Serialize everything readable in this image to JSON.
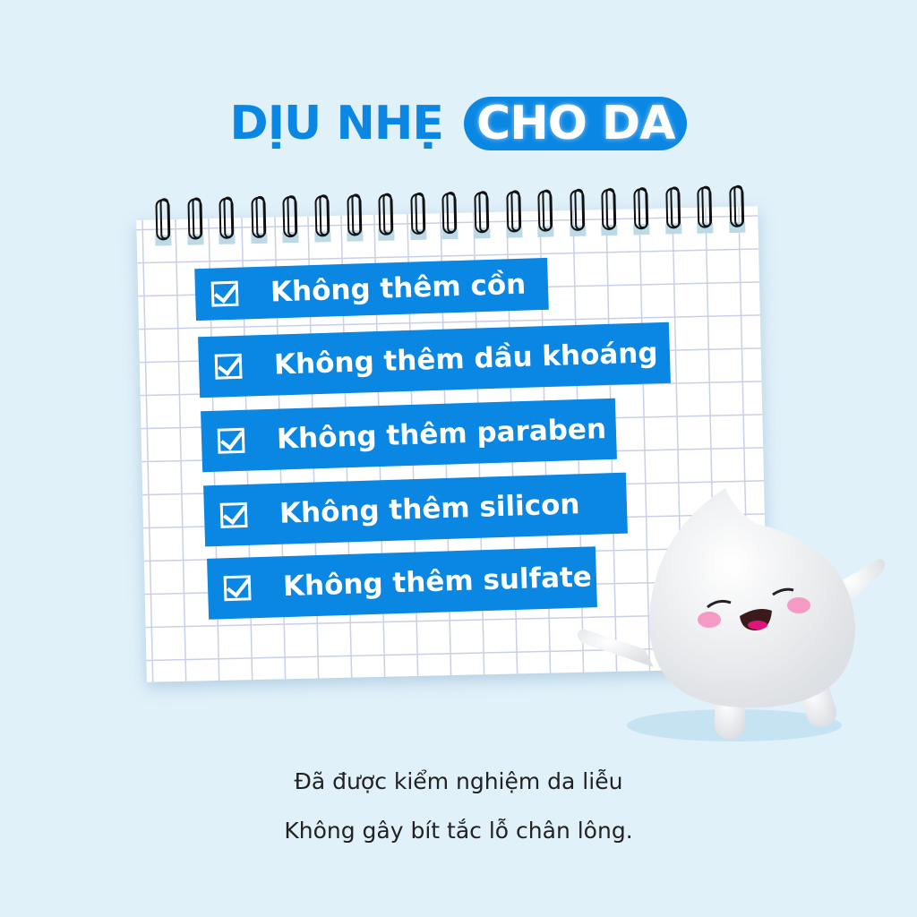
{
  "title": {
    "part1": "DỊU NHẸ",
    "part2": "CHO DA"
  },
  "items": [
    {
      "label": "Không thêm cồn",
      "icon": "checkbox-checked-icon"
    },
    {
      "label": "Không thêm dầu khoáng",
      "icon": "checkbox-checked-icon"
    },
    {
      "label": "Không thêm paraben",
      "icon": "checkbox-checked-icon"
    },
    {
      "label": "Không thêm silicon",
      "icon": "checkbox-checked-icon"
    },
    {
      "label": "Không thêm sulfate",
      "icon": "checkbox-checked-icon"
    }
  ],
  "footer": {
    "line1": "Đã được kiểm nghiệm da liễu",
    "line2": "Không gây bít tắc lỗ chân lông."
  },
  "colors": {
    "background": "#e1f1fa",
    "accent": "#0a87e3"
  }
}
